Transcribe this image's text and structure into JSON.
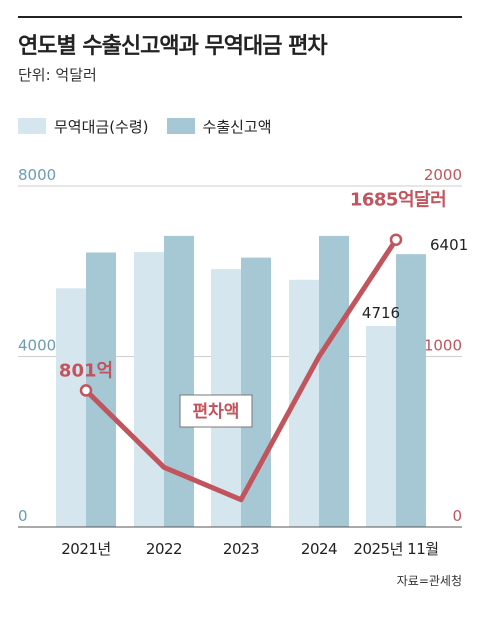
{
  "title": "연도별 수출신고액과 무역대금 편차",
  "subtitle": "단위: 억달러",
  "legend": {
    "trade": "무역대금(수령)",
    "export": "수출신고액"
  },
  "source": "자료=관세청",
  "colors": {
    "trade": "#d6e6ee",
    "export": "#a6c8d4",
    "line": "#c1545c",
    "left_axis": "#6a9cb4",
    "right_axis": "#c1545c"
  },
  "chart_data": {
    "type": "bar",
    "categories": [
      "2021년",
      "2022",
      "2023",
      "2024",
      "2025년 11월"
    ],
    "series": [
      {
        "name": "무역대금(수령)",
        "axis": "left",
        "values": [
          5600,
          6450,
          6050,
          5800,
          4716
        ]
      },
      {
        "name": "수출신고액",
        "axis": "left",
        "values": [
          6440,
          6830,
          6320,
          6830,
          6401
        ]
      },
      {
        "name": "편차액",
        "axis": "right",
        "type": "line",
        "values": [
          801,
          350,
          160,
          1000,
          1685
        ]
      }
    ],
    "left_axis": {
      "ticks": [
        "8000",
        "4000",
        "0"
      ],
      "ylim": [
        0,
        8000
      ]
    },
    "right_axis": {
      "ticks": [
        "2000",
        "1000",
        "0"
      ],
      "ylim": [
        0,
        2000
      ]
    },
    "line_label": "편차액",
    "annotations": {
      "start_line": "801억",
      "end_line": "1685억달러",
      "trade_last": "4716",
      "export_last": "6401"
    }
  }
}
